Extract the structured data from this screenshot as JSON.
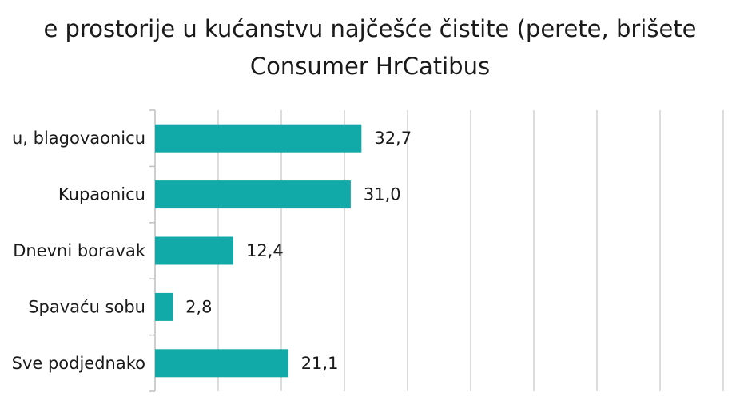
{
  "chart_data": {
    "type": "bar",
    "orientation": "horizontal",
    "title": "e prostorije u kućanstvu najčešće čistite (perete, brišete",
    "subtitle": "Consumer HrCatibus",
    "categories": [
      "u,  blagovaonicu",
      "Kupaonicu",
      "Dnevni boravak",
      "Spavaću sobu",
      "Sve podjednako"
    ],
    "values": [
      32.7,
      31.0,
      12.4,
      2.8,
      21.1
    ],
    "value_labels": [
      "32,7",
      "31,0",
      "12,4",
      "2,8",
      "21,1"
    ],
    "xlim": [
      0,
      100
    ],
    "grid": true,
    "legend": "none",
    "bar_color": "#12aaa8"
  }
}
